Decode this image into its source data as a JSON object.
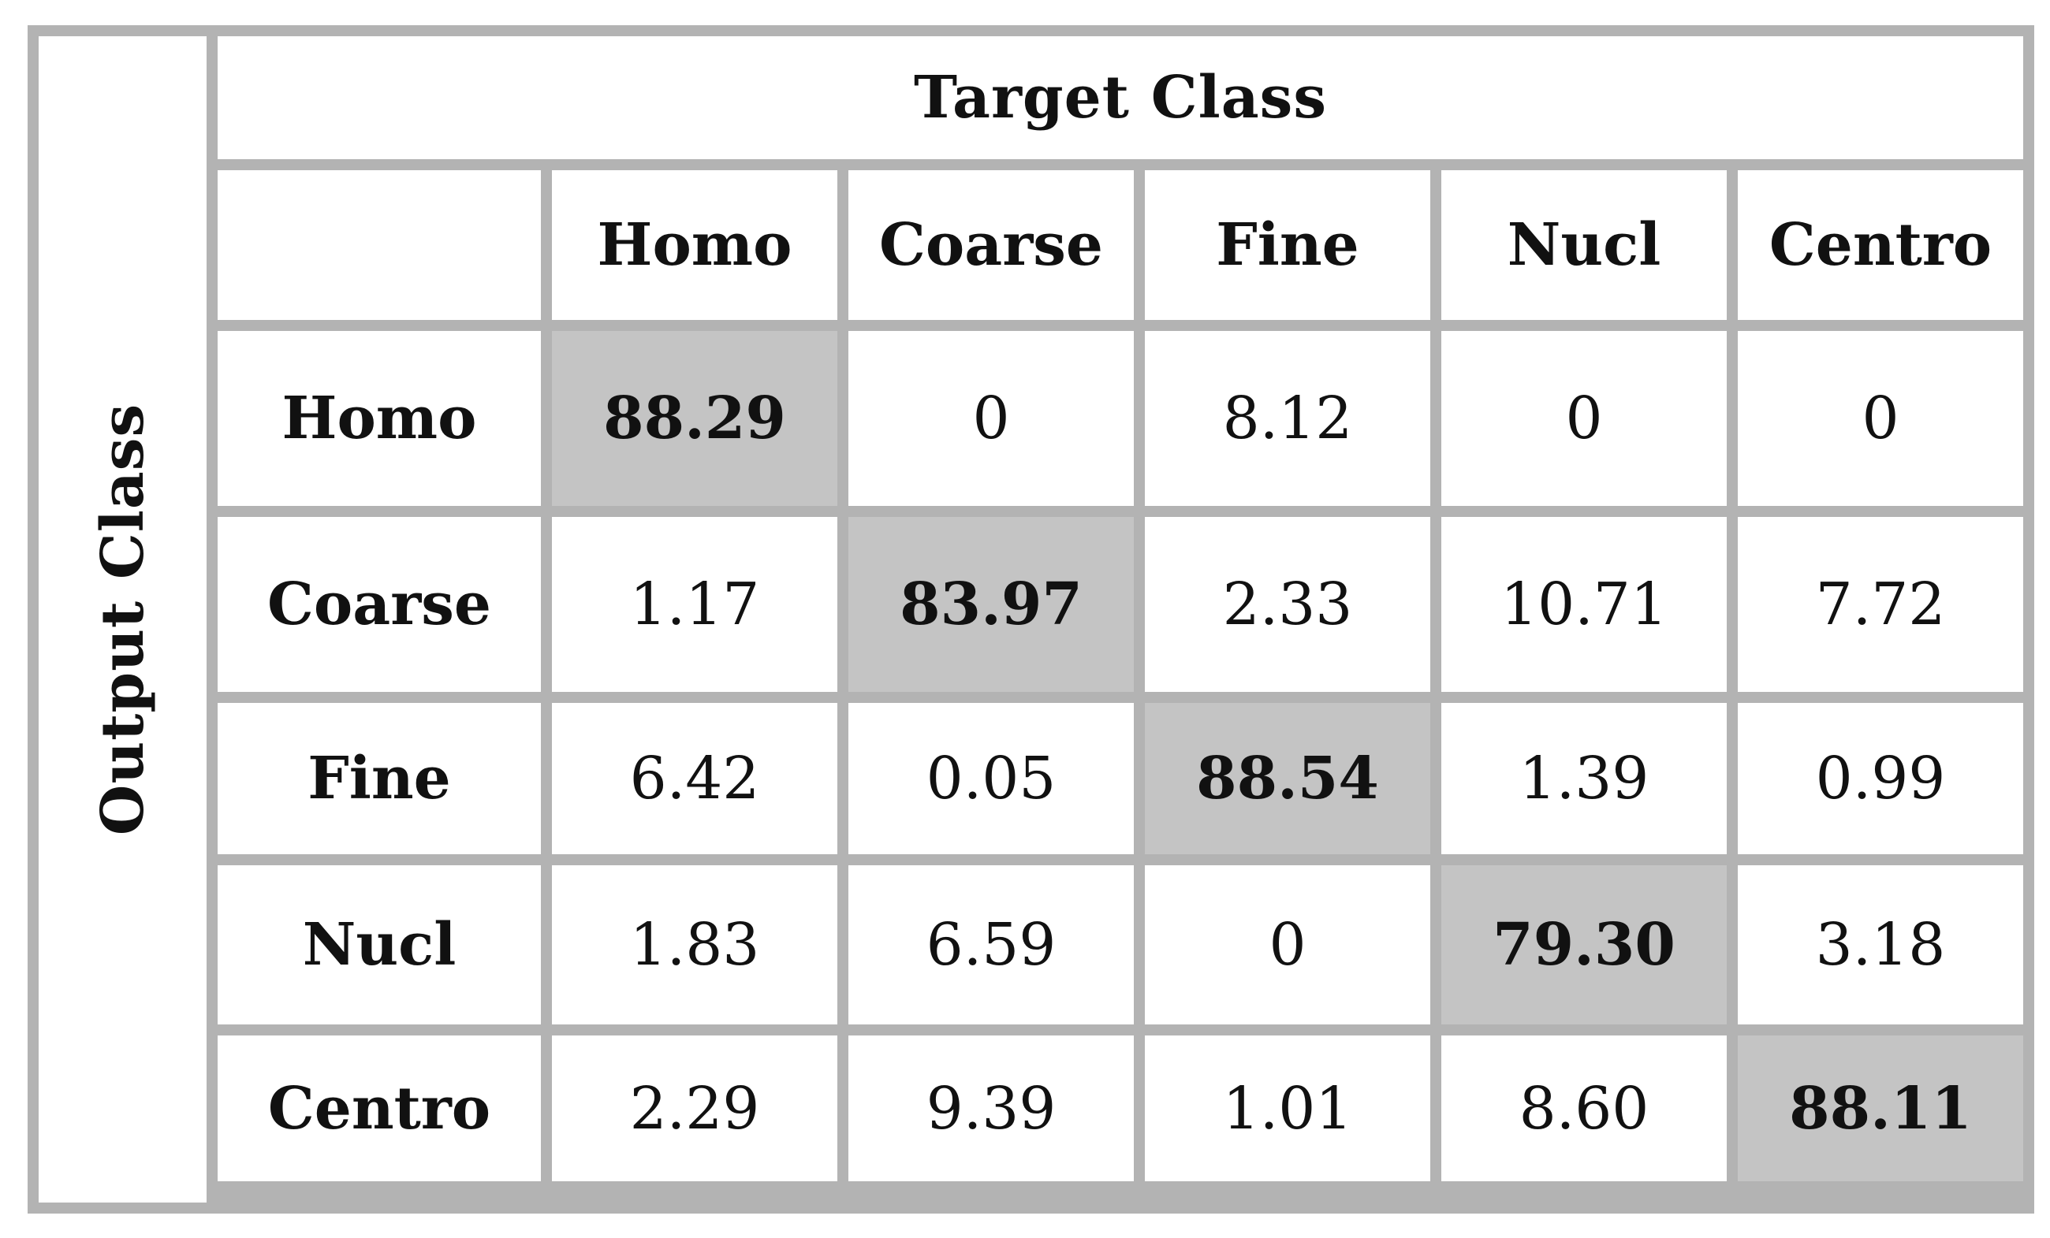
{
  "chart_data": {
    "type": "table",
    "title": "Target Class",
    "ylabel": "Output Class",
    "columns": [
      "Homo",
      "Coarse",
      "Fine",
      "Nucl",
      "Centro"
    ],
    "rows": [
      {
        "label": "Homo",
        "values": [
          "88.29",
          "0",
          "8.12",
          "0",
          "0"
        ]
      },
      {
        "label": "Coarse",
        "values": [
          "1.17",
          "83.97",
          "2.33",
          "10.71",
          "7.72"
        ]
      },
      {
        "label": "Fine",
        "values": [
          "6.42",
          "0.05",
          "88.54",
          "1.39",
          "0.99"
        ]
      },
      {
        "label": "Nucl",
        "values": [
          "1.83",
          "6.59",
          "0",
          "79.30",
          "3.18"
        ]
      },
      {
        "label": "Centro",
        "values": [
          "2.29",
          "9.39",
          "1.01",
          "8.60",
          "88.11"
        ]
      }
    ],
    "highlight": "diagonal",
    "colors": {
      "highlight_fill": "#c4c4c4",
      "grid_lines": "#b3b3b3"
    }
  }
}
